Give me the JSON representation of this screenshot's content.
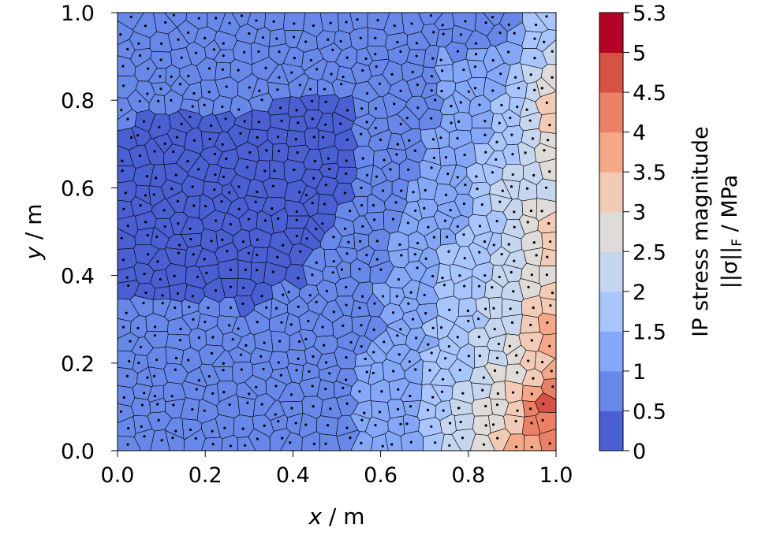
{
  "chart_data": {
    "type": "heatmap",
    "subtype": "voronoi-cells-with-integration-points",
    "xlabel_var": "x",
    "xlabel_unit": " / m",
    "ylabel_var": "y",
    "ylabel_unit": " / m",
    "xlim": [
      0,
      1
    ],
    "ylim": [
      0,
      1
    ],
    "xticks": [
      "0.0",
      "0.2",
      "0.4",
      "0.6",
      "0.8",
      "1.0"
    ],
    "yticks": [
      "0.0",
      "0.2",
      "0.4",
      "0.6",
      "0.8",
      "1.0"
    ],
    "colorbar": {
      "label_line1": "IP stress magnitude",
      "label_line2_pre": "||σ||",
      "label_line2_sub": "F",
      "label_line2_post": " / MPa",
      "levels": [
        0,
        0.5,
        1,
        1.5,
        2,
        2.5,
        3,
        3.5,
        4,
        4.5,
        5,
        5.3
      ],
      "tick_labels": [
        "0",
        "0.5",
        "1",
        "1.5",
        "2",
        "2.5",
        "3",
        "3.5",
        "4",
        "4.5",
        "5",
        "5.3"
      ],
      "colors": [
        "#4a5fd1",
        "#6788e8",
        "#84a7f8",
        "#a9c5fd",
        "#c6d6ee",
        "#dfdbd9",
        "#f2cbb7",
        "#f5a889",
        "#ea8066",
        "#d65244",
        "#b40326"
      ],
      "cmap": "coolwarm"
    },
    "field_grid": {
      "x": [
        0,
        0.1,
        0.2,
        0.3,
        0.4,
        0.5,
        0.6,
        0.7,
        0.8,
        0.9,
        1.0
      ],
      "y": [
        1.0,
        0.9,
        0.8,
        0.7,
        0.6,
        0.5,
        0.4,
        0.3,
        0.2,
        0.1,
        0.0
      ],
      "values": [
        [
          0.7,
          0.7,
          0.8,
          0.8,
          0.9,
          0.9,
          1.0,
          1.0,
          0.8,
          0.8,
          1.8
        ],
        [
          0.7,
          0.7,
          0.6,
          0.7,
          0.8,
          0.8,
          0.9,
          1.0,
          1.0,
          1.2,
          2.5
        ],
        [
          0.6,
          0.6,
          0.6,
          0.6,
          0.5,
          0.45,
          0.7,
          0.9,
          1.2,
          1.6,
          3.5
        ],
        [
          0.4,
          0.3,
          0.3,
          0.4,
          0.3,
          0.3,
          0.7,
          1.0,
          1.3,
          1.8,
          3.2
        ],
        [
          0.3,
          0.3,
          0.3,
          0.3,
          0.3,
          0.4,
          0.8,
          1.1,
          1.5,
          2.2,
          2.5
        ],
        [
          0.3,
          0.3,
          0.3,
          0.3,
          0.3,
          0.5,
          0.9,
          1.2,
          1.6,
          2.2,
          3.8
        ],
        [
          0.4,
          0.3,
          0.3,
          0.3,
          0.4,
          0.7,
          1.0,
          1.4,
          1.8,
          2.3,
          2.8
        ],
        [
          0.7,
          0.7,
          0.6,
          0.6,
          0.7,
          0.8,
          1.0,
          1.4,
          1.8,
          2.4,
          4.0
        ],
        [
          0.8,
          0.8,
          0.7,
          0.7,
          0.8,
          0.9,
          1.1,
          1.5,
          2.0,
          2.8,
          3.5
        ],
        [
          0.9,
          0.8,
          0.8,
          0.8,
          0.8,
          0.9,
          1.2,
          1.6,
          2.2,
          3.2,
          5.2
        ],
        [
          0.9,
          0.8,
          0.8,
          0.8,
          0.8,
          0.9,
          1.2,
          1.6,
          2.6,
          3.6,
          4.2
        ]
      ]
    }
  }
}
